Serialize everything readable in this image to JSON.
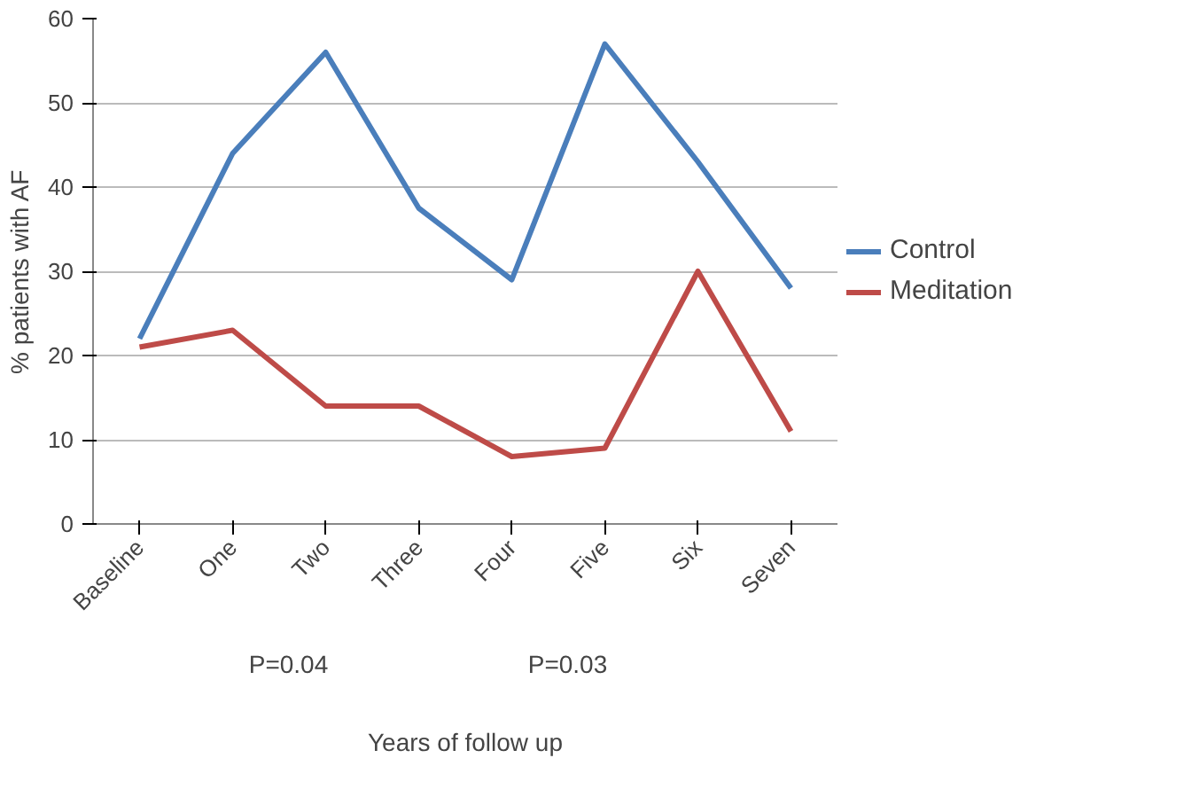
{
  "chart_data": {
    "type": "line",
    "xlabel": "Years of follow up",
    "ylabel": "% patients with AF",
    "categories": [
      "Baseline",
      "One",
      "Two",
      "Three",
      "Four",
      "Five",
      "Six",
      "Seven"
    ],
    "series": [
      {
        "name": "Control",
        "color": "#4a7ebb",
        "values": [
          22,
          44,
          56,
          37.5,
          29,
          57,
          43,
          28
        ]
      },
      {
        "name": "Meditation",
        "color": "#be4b48",
        "values": [
          21,
          23,
          14,
          14,
          8,
          9,
          30,
          11
        ]
      }
    ],
    "ylim": [
      0,
      60
    ],
    "yticks": [
      0,
      10,
      20,
      30,
      40,
      50,
      60
    ],
    "grid": "y",
    "legend": "right",
    "marker": "none",
    "line_style": "solid",
    "annotations": [
      "P=0.04",
      "P=0.03"
    ]
  }
}
